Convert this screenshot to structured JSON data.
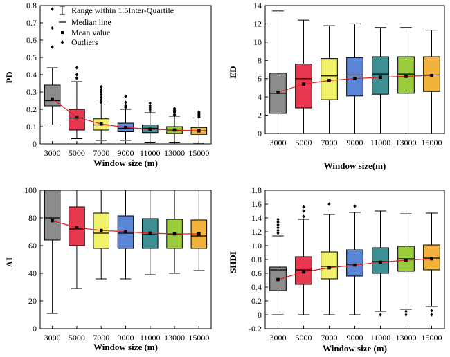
{
  "colors": [
    "#8c8c8c",
    "#e8384f",
    "#f2f26a",
    "#5b86d8",
    "#3d8f93",
    "#9acd3c",
    "#f2b33d"
  ],
  "mean_line_color": "#e02020",
  "legend": {
    "range": "Range within 1.5Inter-Quartile",
    "median": "Median line",
    "mean": "Mean value",
    "outliers": "Outliers"
  },
  "chart_data": [
    {
      "id": "pd",
      "type": "box",
      "ylabel": "PD",
      "xlabel": "Window size (m)",
      "categories": [
        "3000",
        "5000",
        "7000",
        "9000",
        "11000",
        "13000",
        "15000"
      ],
      "ylim": [
        0,
        0.8
      ],
      "yticks": [
        "0",
        "0.1",
        "0.2",
        "0.3",
        "0.4",
        "0.5",
        "0.6",
        "0.7",
        "0.8"
      ],
      "series": [
        {
          "min": 0.11,
          "q1": 0.22,
          "median": 0.25,
          "q3": 0.34,
          "max": 0.44,
          "mean": 0.26,
          "outliers": [
            0.56,
            0.67,
            0.78
          ]
        },
        {
          "min": 0.03,
          "q1": 0.08,
          "median": 0.15,
          "q3": 0.2,
          "max": 0.36,
          "mean": 0.155,
          "outliers": [
            0.38,
            0.4,
            0.44
          ]
        },
        {
          "min": 0.02,
          "q1": 0.08,
          "median": 0.11,
          "q3": 0.145,
          "max": 0.23,
          "mean": 0.115,
          "outliers": [
            0.24,
            0.255,
            0.27,
            0.285,
            0.3,
            0.315,
            0.33
          ]
        },
        {
          "min": 0.02,
          "q1": 0.07,
          "median": 0.09,
          "q3": 0.12,
          "max": 0.2,
          "mean": 0.095,
          "outliers": [
            0.21,
            0.215,
            0.22,
            0.24,
            0.275
          ]
        },
        {
          "min": 0.01,
          "q1": 0.065,
          "median": 0.09,
          "q3": 0.11,
          "max": 0.18,
          "mean": 0.085,
          "outliers": [
            0.19,
            0.2,
            0.21,
            0.22,
            0.235
          ]
        },
        {
          "min": 0.01,
          "q1": 0.06,
          "median": 0.075,
          "q3": 0.1,
          "max": 0.16,
          "mean": 0.08,
          "outliers": [
            0.165,
            0.17,
            0.18,
            0.185,
            0.19,
            0.195,
            0.2,
            0.205
          ]
        },
        {
          "min": 0.005,
          "q1": 0.055,
          "median": 0.075,
          "q3": 0.095,
          "max": 0.15,
          "mean": 0.075,
          "outliers": [
            0.155,
            0.16,
            0.165,
            0.17,
            0.175,
            0.18,
            0.185
          ]
        }
      ]
    },
    {
      "id": "ed",
      "type": "box",
      "ylabel": "ED",
      "xlabel": "Window size(m)",
      "categories": [
        "3000",
        "5000",
        "7000",
        "9000",
        "11000",
        "13000",
        "15000"
      ],
      "ylim": [
        0,
        14
      ],
      "yticks": [
        "0",
        "2",
        "4",
        "6",
        "8",
        "10",
        "12",
        "14"
      ],
      "series": [
        {
          "min": 0,
          "q1": 2.2,
          "median": 4.4,
          "q3": 6.6,
          "max": 13.4,
          "mean": 4.5,
          "outliers": []
        },
        {
          "min": 0,
          "q1": 2.8,
          "median": 6.0,
          "q3": 7.6,
          "max": 12.4,
          "mean": 5.4,
          "outliers": []
        },
        {
          "min": 0,
          "q1": 3.7,
          "median": 6.3,
          "q3": 8.2,
          "max": 11.8,
          "mean": 5.8,
          "outliers": []
        },
        {
          "min": 0,
          "q1": 4.1,
          "median": 6.4,
          "q3": 8.3,
          "max": 12.0,
          "mean": 6.0,
          "outliers": []
        },
        {
          "min": 0,
          "q1": 4.3,
          "median": 6.5,
          "q3": 8.4,
          "max": 11.6,
          "mean": 6.15,
          "outliers": []
        },
        {
          "min": 0,
          "q1": 4.4,
          "median": 6.5,
          "q3": 8.4,
          "max": 11.6,
          "mean": 6.25,
          "outliers": []
        },
        {
          "min": 0,
          "q1": 4.6,
          "median": 6.4,
          "q3": 8.4,
          "max": 11.3,
          "mean": 6.35,
          "outliers": []
        }
      ]
    },
    {
      "id": "ai",
      "type": "box",
      "ylabel": "AI",
      "xlabel": "Window size (m)",
      "categories": [
        "3000",
        "5000",
        "7000",
        "9000",
        "11000",
        "13000",
        "15000"
      ],
      "ylim": [
        0,
        100
      ],
      "yticks": [
        "0",
        "20",
        "40",
        "60",
        "80",
        "100"
      ],
      "series": [
        {
          "min": 11,
          "q1": 64,
          "median": 80,
          "q3": 100,
          "max": 100,
          "mean": 78,
          "outliers": []
        },
        {
          "min": 29,
          "q1": 60,
          "median": 72,
          "q3": 88,
          "max": 100,
          "mean": 73,
          "outliers": []
        },
        {
          "min": 36,
          "q1": 58,
          "median": 69,
          "q3": 83.5,
          "max": 100,
          "mean": 71,
          "outliers": []
        },
        {
          "min": 36,
          "q1": 58,
          "median": 69,
          "q3": 81.5,
          "max": 100,
          "mean": 70,
          "outliers": []
        },
        {
          "min": 39,
          "q1": 58,
          "median": 68,
          "q3": 79.5,
          "max": 100,
          "mean": 69,
          "outliers": []
        },
        {
          "min": 40,
          "q1": 58,
          "median": 68,
          "q3": 79,
          "max": 100,
          "mean": 68.5,
          "outliers": []
        },
        {
          "min": 42,
          "q1": 58,
          "median": 67,
          "q3": 78.5,
          "max": 100,
          "mean": 68.5,
          "outliers": []
        }
      ]
    },
    {
      "id": "shdi",
      "type": "box",
      "ylabel": "SHDI",
      "xlabel": "Window size (m)",
      "categories": [
        "3000",
        "5000",
        "7000",
        "9000",
        "11000",
        "13000",
        "15000"
      ],
      "ylim": [
        -0.2,
        1.8
      ],
      "yticks": [
        "-0.2",
        "0",
        "0.2",
        "0.4",
        "0.6",
        "0.8",
        "1.0",
        "1.2",
        "1.4",
        "1.6",
        "1.8"
      ],
      "series": [
        {
          "min": 0,
          "q1": 0.35,
          "median": 0.65,
          "q3": 0.69,
          "max": 1.14,
          "mean": 0.51,
          "outliers": [
            1.18,
            1.22,
            1.26,
            1.3,
            1.34,
            1.38
          ]
        },
        {
          "min": 0,
          "q1": 0.44,
          "median": 0.65,
          "q3": 0.84,
          "max": 1.38,
          "mean": 0.62,
          "outliers": [
            1.42,
            1.5,
            1.56
          ]
        },
        {
          "min": 0,
          "q1": 0.52,
          "median": 0.7,
          "q3": 0.91,
          "max": 1.45,
          "mean": 0.68,
          "outliers": [
            1.6
          ]
        },
        {
          "min": 0,
          "q1": 0.56,
          "median": 0.73,
          "q3": 0.94,
          "max": 1.48,
          "mean": 0.72,
          "outliers": [
            1.57
          ]
        },
        {
          "min": 0.05,
          "q1": 0.6,
          "median": 0.77,
          "q3": 0.97,
          "max": 1.5,
          "mean": 0.76,
          "outliers": [
            0.0
          ]
        },
        {
          "min": 0.08,
          "q1": 0.63,
          "median": 0.81,
          "q3": 0.99,
          "max": 1.46,
          "mean": 0.79,
          "outliers": [
            0.05,
            0.0
          ]
        },
        {
          "min": 0.12,
          "q1": 0.65,
          "median": 0.82,
          "q3": 1.01,
          "max": 1.47,
          "mean": 0.81,
          "outliers": [
            0.06,
            0.0
          ]
        }
      ]
    }
  ]
}
